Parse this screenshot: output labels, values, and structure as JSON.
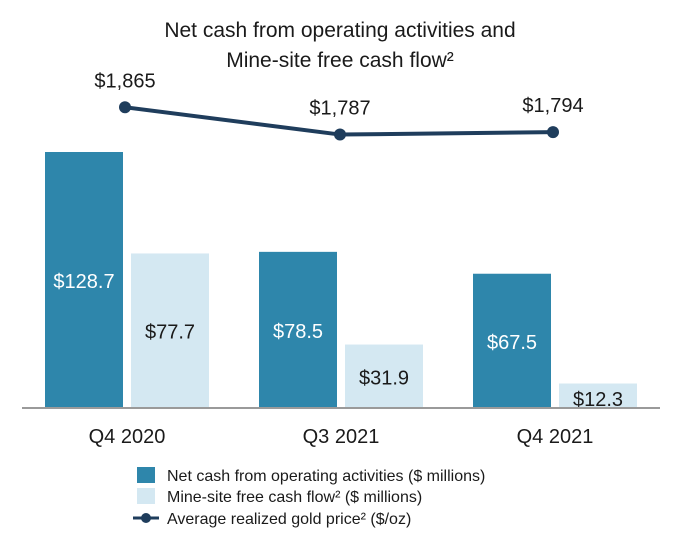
{
  "chart_data": {
    "type": "bar",
    "title_line1": "Net cash from operating activities and",
    "title_line2": "Mine-site free cash flow²",
    "categories": [
      "Q4 2020",
      "Q3 2021",
      "Q4 2021"
    ],
    "series": [
      {
        "name": "Net cash from operating activities ($ millions)",
        "values": [
          128.7,
          78.5,
          67.5
        ],
        "labels": [
          "$128.7",
          "$78.5",
          "$67.5"
        ],
        "color": "#2e86ab"
      },
      {
        "name": "Mine-site free cash flow² ($ millions)",
        "values": [
          77.7,
          31.9,
          12.3
        ],
        "labels": [
          "$77.7",
          "$31.9",
          "$12.3"
        ],
        "color": "#d4e8f2"
      }
    ],
    "line_series": {
      "name": "Average realized gold price² ($/oz)",
      "values": [
        1865,
        1787,
        1794
      ],
      "labels": [
        "$1,865",
        "$1,787",
        "$1,794"
      ],
      "color": "#1f3d5c"
    },
    "bar_label_colors": [
      "#ffffff",
      "#1a1a1a"
    ],
    "ylim": [
      0,
      130
    ],
    "grid": false,
    "legend": "bottom"
  }
}
